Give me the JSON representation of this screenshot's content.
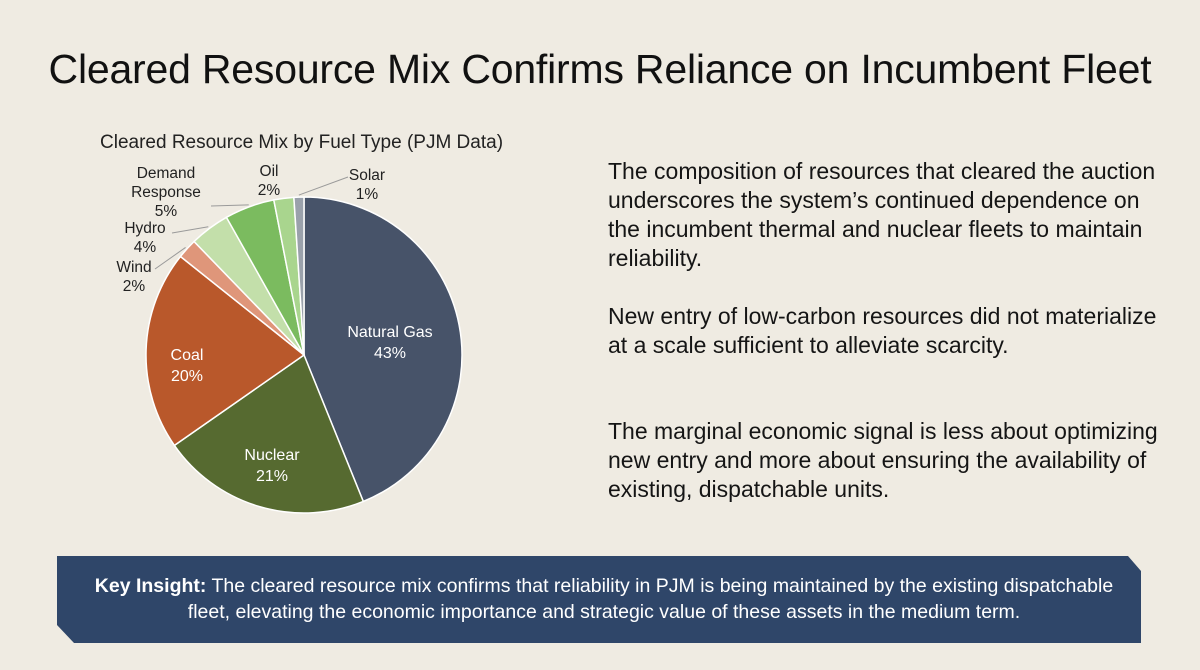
{
  "page": {
    "title": "Cleared Resource Mix Confirms Reliance on Incumbent Fleet"
  },
  "chart_data": {
    "type": "pie",
    "title": "Cleared Resource Mix by Fuel Type (PJM Data)",
    "slices": [
      {
        "label": "Natural Gas",
        "value": 43,
        "value_label": "43%",
        "color": "#475369",
        "label_text_color": "#ffffff"
      },
      {
        "label": "Nuclear",
        "value": 21,
        "value_label": "21%",
        "color": "#566a30",
        "label_text_color": "#ffffff"
      },
      {
        "label": "Coal",
        "value": 20,
        "value_label": "20%",
        "color": "#b9582b",
        "label_text_color": "#ffffff"
      },
      {
        "label": "Wind",
        "value": 2,
        "value_label": "2%",
        "color": "#df967a",
        "label_text_color": "#222222"
      },
      {
        "label": "Hydro",
        "value": 4,
        "value_label": "4%",
        "color": "#c3dfaa",
        "label_text_color": "#222222"
      },
      {
        "label": "Demand Response",
        "value": 5,
        "value_label": "5%",
        "color": "#7bbb5f",
        "label_text_color": "#222222"
      },
      {
        "label": "Oil",
        "value": 2,
        "value_label": "2%",
        "color": "#a9d58e",
        "label_text_color": "#222222"
      },
      {
        "label": "Solar",
        "value": 1,
        "value_label": "1%",
        "color": "#9aa1ab",
        "label_text_color": "#222222"
      }
    ],
    "legend": "none",
    "label_style": "inside labels for large slices, leader-line callouts for small slices"
  },
  "paragraphs": [
    "The composition of resources that cleared the auction underscores the system’s continued dependence on the incumbent thermal and nuclear fleets to maintain reliability.",
    "New entry of low-carbon resources did not materialize at a scale sufficient to alleviate scarcity.",
    "The marginal economic signal is less about optimizing new entry and more about ensuring the availability of existing, dispatchable units."
  ],
  "insight": {
    "label": "Key Insight:",
    "text": " The cleared resource mix confirms that reliability in PJM is being maintained by the existing dispatchable fleet, elevating the economic importance and strategic value of these assets in the medium term.",
    "background": "#2f4669"
  }
}
